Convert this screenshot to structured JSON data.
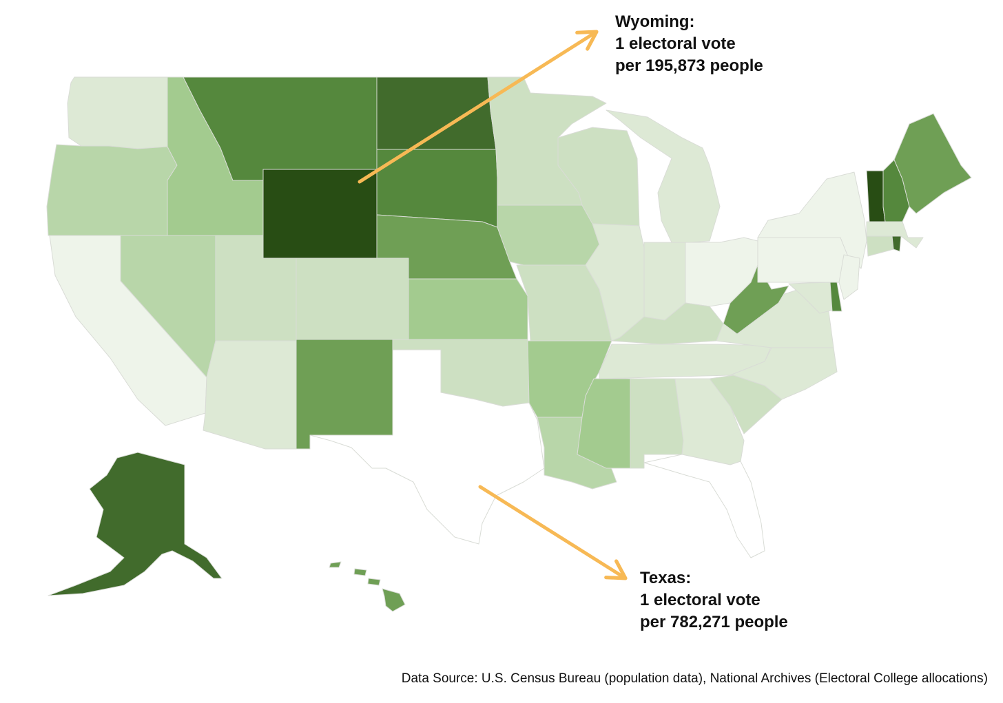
{
  "annotations": {
    "wyoming": {
      "title": "Wyoming:",
      "line1": "1 electoral vote",
      "line2": "per 195,873 people"
    },
    "texas": {
      "title": "Texas:",
      "line1": "1 electoral vote",
      "line2": "per 782,271 people"
    }
  },
  "source": "Data Source: U.S. Census Bureau (population data), National Archives (Electoral College allocations)",
  "colors": {
    "arrow": "#f7b955",
    "state_border": "#d9dcd6",
    "scale": [
      "#ffffff",
      "#eef4ea",
      "#dde9d5",
      "#cde0c2",
      "#b8d6a9",
      "#a3cb8f",
      "#8cbd74",
      "#6f9f55",
      "#55883d",
      "#416b2c",
      "#284d14"
    ]
  },
  "states": [
    {
      "name": "WA",
      "level": 2
    },
    {
      "name": "OR",
      "level": 4
    },
    {
      "name": "CA",
      "level": 1
    },
    {
      "name": "ID",
      "level": 5
    },
    {
      "name": "NV",
      "level": 4
    },
    {
      "name": "MT",
      "level": 8
    },
    {
      "name": "WY",
      "level": 10
    },
    {
      "name": "UT",
      "level": 3
    },
    {
      "name": "AZ",
      "level": 2
    },
    {
      "name": "CO",
      "level": 3
    },
    {
      "name": "NM",
      "level": 7
    },
    {
      "name": "ND",
      "level": 9
    },
    {
      "name": "SD",
      "level": 8
    },
    {
      "name": "NE",
      "level": 7
    },
    {
      "name": "KS",
      "level": 5
    },
    {
      "name": "OK",
      "level": 3
    },
    {
      "name": "TX",
      "level": 0
    },
    {
      "name": "MN",
      "level": 3
    },
    {
      "name": "IA",
      "level": 4
    },
    {
      "name": "MO",
      "level": 3
    },
    {
      "name": "AR",
      "level": 5
    },
    {
      "name": "LA",
      "level": 4
    },
    {
      "name": "WI",
      "level": 3
    },
    {
      "name": "IL",
      "level": 2
    },
    {
      "name": "MI",
      "level": 2
    },
    {
      "name": "IN",
      "level": 2
    },
    {
      "name": "OH",
      "level": 1
    },
    {
      "name": "KY",
      "level": 3
    },
    {
      "name": "TN",
      "level": 2
    },
    {
      "name": "MS",
      "level": 5
    },
    {
      "name": "AL",
      "level": 3
    },
    {
      "name": "GA",
      "level": 2
    },
    {
      "name": "FL",
      "level": 0
    },
    {
      "name": "SC",
      "level": 3
    },
    {
      "name": "NC",
      "level": 2
    },
    {
      "name": "VA",
      "level": 2
    },
    {
      "name": "WV",
      "level": 7
    },
    {
      "name": "PA",
      "level": 1
    },
    {
      "name": "NY",
      "level": 1
    },
    {
      "name": "MD",
      "level": 2
    },
    {
      "name": "DE",
      "level": 8
    },
    {
      "name": "NJ",
      "level": 1
    },
    {
      "name": "CT",
      "level": 3
    },
    {
      "name": "RI",
      "level": 9
    },
    {
      "name": "MA",
      "level": 2
    },
    {
      "name": "VT",
      "level": 10
    },
    {
      "name": "NH",
      "level": 8
    },
    {
      "name": "ME",
      "level": 7
    },
    {
      "name": "AK",
      "level": 9
    },
    {
      "name": "HI",
      "level": 7
    }
  ]
}
